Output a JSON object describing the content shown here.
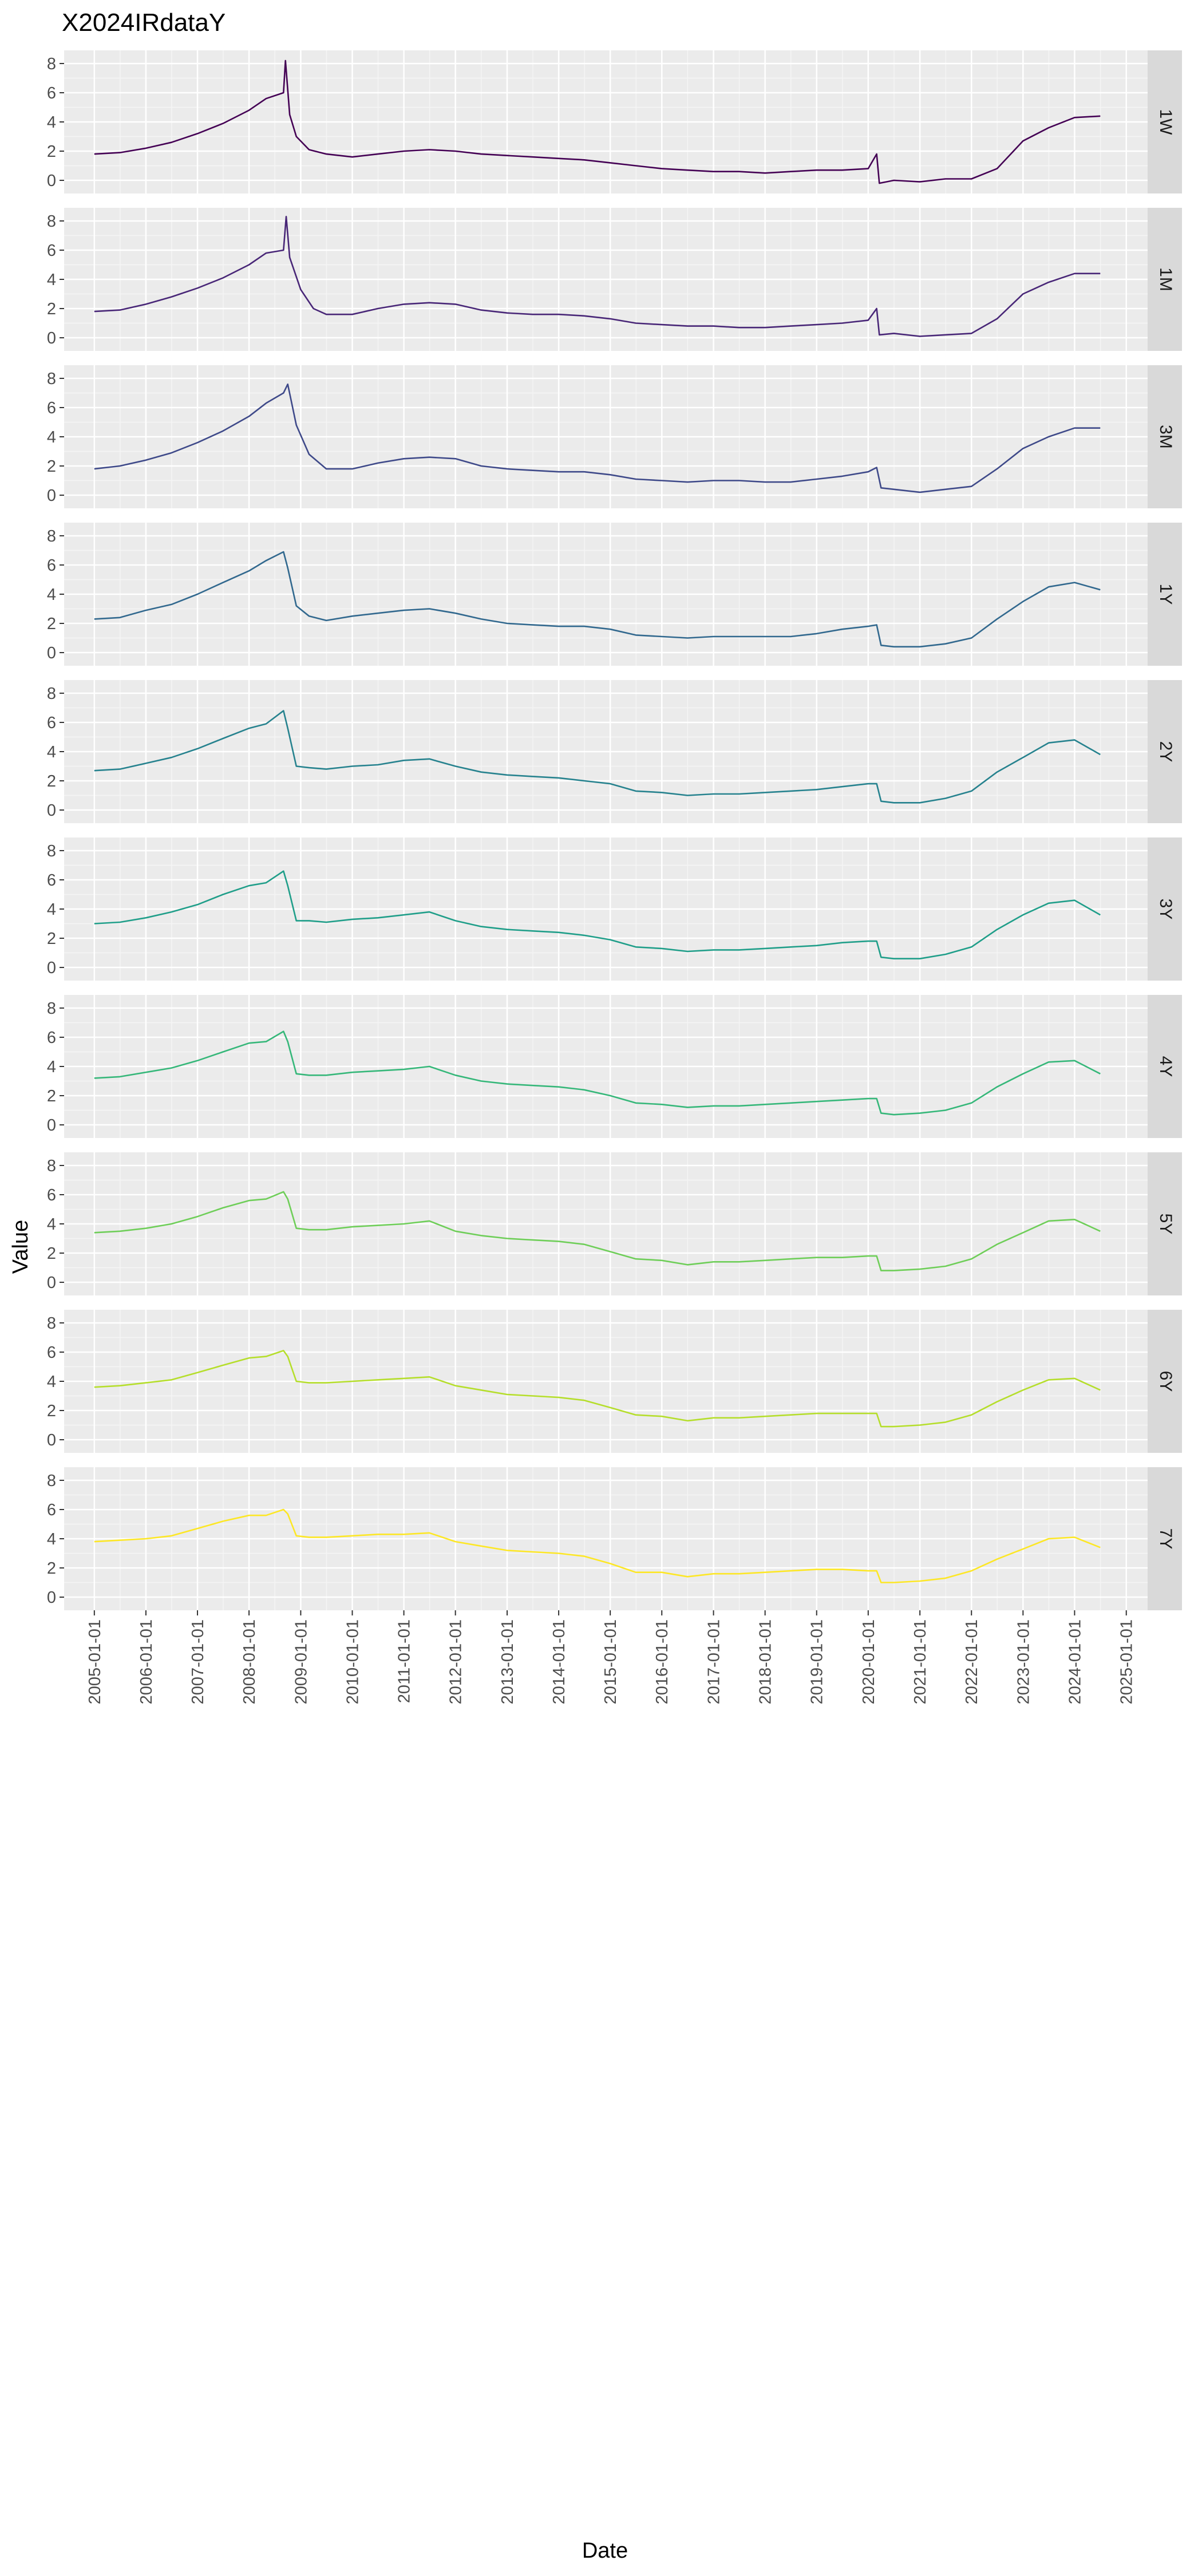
{
  "chart_data": {
    "type": "line",
    "title": "X2024IRdataY",
    "xlabel": "Date",
    "ylabel": "Value",
    "x_tick_labels": [
      "2005-01-01",
      "2006-01-01",
      "2007-01-01",
      "2008-01-01",
      "2009-01-01",
      "2010-01-01",
      "2011-01-01",
      "2012-01-01",
      "2013-01-01",
      "2014-01-01",
      "2015-01-01",
      "2016-01-01",
      "2017-01-01",
      "2018-01-01",
      "2019-01-01",
      "2020-01-01",
      "2021-01-01",
      "2022-01-01",
      "2023-01-01",
      "2024-01-01",
      "2025-01-01"
    ],
    "xlim": [
      "2004-06-01",
      "2025-06-01"
    ],
    "y_tick_labels": [
      "0",
      "2",
      "4",
      "6",
      "8"
    ],
    "ylim": [
      -0.9,
      8.9
    ],
    "grid": true,
    "facet_layout": "one row per series, strip labels on right",
    "colors": {
      "panel_bg": "#ebebeb",
      "grid_major": "#ffffff",
      "strip_bg": "#d9d9d9",
      "tick_label": "#4d4d4d"
    },
    "series": [
      {
        "name": "1W",
        "color": "#440154",
        "x": [
          "2005-01-01",
          "2005-07-01",
          "2006-01-01",
          "2006-07-01",
          "2007-01-01",
          "2007-07-01",
          "2008-01-01",
          "2008-05-01",
          "2008-09-01",
          "2008-09-15",
          "2008-10-15",
          "2008-12-01",
          "2009-03-01",
          "2009-07-01",
          "2010-01-01",
          "2010-07-01",
          "2011-01-01",
          "2011-07-01",
          "2012-01-01",
          "2012-07-01",
          "2013-01-01",
          "2013-07-01",
          "2014-01-01",
          "2014-07-01",
          "2015-01-01",
          "2015-07-01",
          "2016-01-01",
          "2016-07-01",
          "2017-01-01",
          "2017-07-01",
          "2018-01-01",
          "2018-07-01",
          "2019-01-01",
          "2019-07-01",
          "2020-01-01",
          "2020-03-01",
          "2020-03-20",
          "2020-07-01",
          "2021-01-01",
          "2021-07-01",
          "2022-01-01",
          "2022-07-01",
          "2023-01-01",
          "2023-07-01",
          "2024-01-01",
          "2024-07-01"
        ],
        "values": [
          1.8,
          1.9,
          2.2,
          2.6,
          3.2,
          3.9,
          4.8,
          5.6,
          6.0,
          8.2,
          4.5,
          3.0,
          2.1,
          1.8,
          1.6,
          1.8,
          2.0,
          2.1,
          2.0,
          1.8,
          1.7,
          1.6,
          1.5,
          1.4,
          1.2,
          1.0,
          0.8,
          0.7,
          0.6,
          0.6,
          0.5,
          0.6,
          0.7,
          0.7,
          0.8,
          1.8,
          -0.2,
          0.0,
          -0.1,
          0.1,
          0.1,
          0.8,
          2.7,
          3.6,
          4.3,
          4.4
        ]
      },
      {
        "name": "1M",
        "color": "#482677",
        "x": [
          "2005-01-01",
          "2005-07-01",
          "2006-01-01",
          "2006-07-01",
          "2007-01-01",
          "2007-07-01",
          "2008-01-01",
          "2008-05-01",
          "2008-09-01",
          "2008-09-20",
          "2008-10-15",
          "2009-01-01",
          "2009-04-01",
          "2009-07-01",
          "2010-01-01",
          "2010-07-01",
          "2011-01-01",
          "2011-07-01",
          "2012-01-01",
          "2012-07-01",
          "2013-01-01",
          "2013-07-01",
          "2014-01-01",
          "2014-07-01",
          "2015-01-01",
          "2015-07-01",
          "2016-01-01",
          "2016-07-01",
          "2017-01-01",
          "2017-07-01",
          "2018-01-01",
          "2018-07-01",
          "2019-01-01",
          "2019-07-01",
          "2020-01-01",
          "2020-03-01",
          "2020-03-20",
          "2020-07-01",
          "2021-01-01",
          "2021-07-01",
          "2022-01-01",
          "2022-07-01",
          "2023-01-01",
          "2023-07-01",
          "2024-01-01",
          "2024-07-01"
        ],
        "values": [
          1.8,
          1.9,
          2.3,
          2.8,
          3.4,
          4.1,
          5.0,
          5.8,
          6.0,
          8.3,
          5.5,
          3.3,
          2.0,
          1.6,
          1.6,
          2.0,
          2.3,
          2.4,
          2.3,
          1.9,
          1.7,
          1.6,
          1.6,
          1.5,
          1.3,
          1.0,
          0.9,
          0.8,
          0.8,
          0.7,
          0.7,
          0.8,
          0.9,
          1.0,
          1.2,
          2.0,
          0.2,
          0.3,
          0.1,
          0.2,
          0.3,
          1.3,
          3.0,
          3.8,
          4.4,
          4.4
        ]
      },
      {
        "name": "3M",
        "color": "#3e4989",
        "x": [
          "2005-01-01",
          "2005-07-01",
          "2006-01-01",
          "2006-07-01",
          "2007-01-01",
          "2007-07-01",
          "2008-01-01",
          "2008-05-01",
          "2008-09-01",
          "2008-10-01",
          "2008-12-01",
          "2009-03-01",
          "2009-07-01",
          "2010-01-01",
          "2010-07-01",
          "2011-01-01",
          "2011-07-01",
          "2012-01-01",
          "2012-07-01",
          "2013-01-01",
          "2013-07-01",
          "2014-01-01",
          "2014-07-01",
          "2015-01-01",
          "2015-07-01",
          "2016-01-01",
          "2016-07-01",
          "2017-01-01",
          "2017-07-01",
          "2018-01-01",
          "2018-07-01",
          "2019-01-01",
          "2019-07-01",
          "2020-01-01",
          "2020-03-01",
          "2020-04-01",
          "2020-07-01",
          "2021-01-01",
          "2021-07-01",
          "2022-01-01",
          "2022-07-01",
          "2023-01-01",
          "2023-07-01",
          "2024-01-01",
          "2024-07-01"
        ],
        "values": [
          1.8,
          2.0,
          2.4,
          2.9,
          3.6,
          4.4,
          5.4,
          6.3,
          7.0,
          7.6,
          4.8,
          2.8,
          1.8,
          1.8,
          2.2,
          2.5,
          2.6,
          2.5,
          2.0,
          1.8,
          1.7,
          1.6,
          1.6,
          1.4,
          1.1,
          1.0,
          0.9,
          1.0,
          1.0,
          0.9,
          0.9,
          1.1,
          1.3,
          1.6,
          1.9,
          0.5,
          0.4,
          0.2,
          0.4,
          0.6,
          1.8,
          3.2,
          4.0,
          4.6,
          4.6
        ]
      },
      {
        "name": "1Y",
        "color": "#31688e",
        "x": [
          "2005-01-01",
          "2005-07-01",
          "2006-01-01",
          "2006-07-01",
          "2007-01-01",
          "2007-07-01",
          "2008-01-01",
          "2008-05-01",
          "2008-09-01",
          "2008-10-01",
          "2008-12-01",
          "2009-03-01",
          "2009-07-01",
          "2010-01-01",
          "2010-07-01",
          "2011-01-01",
          "2011-07-01",
          "2012-01-01",
          "2012-07-01",
          "2013-01-01",
          "2013-07-01",
          "2014-01-01",
          "2014-07-01",
          "2015-01-01",
          "2015-07-01",
          "2016-01-01",
          "2016-07-01",
          "2017-01-01",
          "2017-07-01",
          "2018-01-01",
          "2018-07-01",
          "2019-01-01",
          "2019-07-01",
          "2020-01-01",
          "2020-03-01",
          "2020-04-01",
          "2020-07-01",
          "2021-01-01",
          "2021-07-01",
          "2022-01-01",
          "2022-07-01",
          "2023-01-01",
          "2023-07-01",
          "2024-01-01",
          "2024-07-01"
        ],
        "values": [
          2.3,
          2.4,
          2.9,
          3.3,
          4.0,
          4.8,
          5.6,
          6.3,
          6.9,
          5.8,
          3.2,
          2.5,
          2.2,
          2.5,
          2.7,
          2.9,
          3.0,
          2.7,
          2.3,
          2.0,
          1.9,
          1.8,
          1.8,
          1.6,
          1.2,
          1.1,
          1.0,
          1.1,
          1.1,
          1.1,
          1.1,
          1.3,
          1.6,
          1.8,
          1.9,
          0.5,
          0.4,
          0.4,
          0.6,
          1.0,
          2.3,
          3.5,
          4.5,
          4.8,
          4.3
        ]
      },
      {
        "name": "2Y",
        "color": "#26828e",
        "x": [
          "2005-01-01",
          "2005-07-01",
          "2006-01-01",
          "2006-07-01",
          "2007-01-01",
          "2007-07-01",
          "2008-01-01",
          "2008-05-01",
          "2008-09-01",
          "2008-10-01",
          "2008-12-01",
          "2009-03-01",
          "2009-07-01",
          "2010-01-01",
          "2010-07-01",
          "2011-01-01",
          "2011-07-01",
          "2012-01-01",
          "2012-07-01",
          "2013-01-01",
          "2013-07-01",
          "2014-01-01",
          "2014-07-01",
          "2015-01-01",
          "2015-07-01",
          "2016-01-01",
          "2016-07-01",
          "2017-01-01",
          "2017-07-01",
          "2018-01-01",
          "2018-07-01",
          "2019-01-01",
          "2019-07-01",
          "2020-01-01",
          "2020-03-01",
          "2020-04-01",
          "2020-07-01",
          "2021-01-01",
          "2021-07-01",
          "2022-01-01",
          "2022-07-01",
          "2023-01-01",
          "2023-07-01",
          "2024-01-01",
          "2024-07-01"
        ],
        "values": [
          2.7,
          2.8,
          3.2,
          3.6,
          4.2,
          4.9,
          5.6,
          5.9,
          6.8,
          5.6,
          3.0,
          2.9,
          2.8,
          3.0,
          3.1,
          3.4,
          3.5,
          3.0,
          2.6,
          2.4,
          2.3,
          2.2,
          2.0,
          1.8,
          1.3,
          1.2,
          1.0,
          1.1,
          1.1,
          1.2,
          1.3,
          1.4,
          1.6,
          1.8,
          1.8,
          0.6,
          0.5,
          0.5,
          0.8,
          1.3,
          2.6,
          3.6,
          4.6,
          4.8,
          3.8
        ]
      },
      {
        "name": "3Y",
        "color": "#1f9e89",
        "x": [
          "2005-01-01",
          "2005-07-01",
          "2006-01-01",
          "2006-07-01",
          "2007-01-01",
          "2007-07-01",
          "2008-01-01",
          "2008-05-01",
          "2008-09-01",
          "2008-10-01",
          "2008-12-01",
          "2009-03-01",
          "2009-07-01",
          "2010-01-01",
          "2010-07-01",
          "2011-01-01",
          "2011-07-01",
          "2012-01-01",
          "2012-07-01",
          "2013-01-01",
          "2013-07-01",
          "2014-01-01",
          "2014-07-01",
          "2015-01-01",
          "2015-07-01",
          "2016-01-01",
          "2016-07-01",
          "2017-01-01",
          "2017-07-01",
          "2018-01-01",
          "2018-07-01",
          "2019-01-01",
          "2019-07-01",
          "2020-01-01",
          "2020-03-01",
          "2020-04-01",
          "2020-07-01",
          "2021-01-01",
          "2021-07-01",
          "2022-01-01",
          "2022-07-01",
          "2023-01-01",
          "2023-07-01",
          "2024-01-01",
          "2024-07-01"
        ],
        "values": [
          3.0,
          3.1,
          3.4,
          3.8,
          4.3,
          5.0,
          5.6,
          5.8,
          6.6,
          5.6,
          3.2,
          3.2,
          3.1,
          3.3,
          3.4,
          3.6,
          3.8,
          3.2,
          2.8,
          2.6,
          2.5,
          2.4,
          2.2,
          1.9,
          1.4,
          1.3,
          1.1,
          1.2,
          1.2,
          1.3,
          1.4,
          1.5,
          1.7,
          1.8,
          1.8,
          0.7,
          0.6,
          0.6,
          0.9,
          1.4,
          2.6,
          3.6,
          4.4,
          4.6,
          3.6
        ]
      },
      {
        "name": "4Y",
        "color": "#35b779",
        "x": [
          "2005-01-01",
          "2005-07-01",
          "2006-01-01",
          "2006-07-01",
          "2007-01-01",
          "2007-07-01",
          "2008-01-01",
          "2008-05-01",
          "2008-09-01",
          "2008-10-01",
          "2008-12-01",
          "2009-03-01",
          "2009-07-01",
          "2010-01-01",
          "2010-07-01",
          "2011-01-01",
          "2011-07-01",
          "2012-01-01",
          "2012-07-01",
          "2013-01-01",
          "2013-07-01",
          "2014-01-01",
          "2014-07-01",
          "2015-01-01",
          "2015-07-01",
          "2016-01-01",
          "2016-07-01",
          "2017-01-01",
          "2017-07-01",
          "2018-01-01",
          "2018-07-01",
          "2019-01-01",
          "2019-07-01",
          "2020-01-01",
          "2020-03-01",
          "2020-04-01",
          "2020-07-01",
          "2021-01-01",
          "2021-07-01",
          "2022-01-01",
          "2022-07-01",
          "2023-01-01",
          "2023-07-01",
          "2024-01-01",
          "2024-07-01"
        ],
        "values": [
          3.2,
          3.3,
          3.6,
          3.9,
          4.4,
          5.0,
          5.6,
          5.7,
          6.4,
          5.7,
          3.5,
          3.4,
          3.4,
          3.6,
          3.7,
          3.8,
          4.0,
          3.4,
          3.0,
          2.8,
          2.7,
          2.6,
          2.4,
          2.0,
          1.5,
          1.4,
          1.2,
          1.3,
          1.3,
          1.4,
          1.5,
          1.6,
          1.7,
          1.8,
          1.8,
          0.8,
          0.7,
          0.8,
          1.0,
          1.5,
          2.6,
          3.5,
          4.3,
          4.4,
          3.5
        ]
      },
      {
        "name": "5Y",
        "color": "#6ece58",
        "x": [
          "2005-01-01",
          "2005-07-01",
          "2006-01-01",
          "2006-07-01",
          "2007-01-01",
          "2007-07-01",
          "2008-01-01",
          "2008-05-01",
          "2008-09-01",
          "2008-10-01",
          "2008-12-01",
          "2009-03-01",
          "2009-07-01",
          "2010-01-01",
          "2010-07-01",
          "2011-01-01",
          "2011-07-01",
          "2012-01-01",
          "2012-07-01",
          "2013-01-01",
          "2013-07-01",
          "2014-01-01",
          "2014-07-01",
          "2015-01-01",
          "2015-07-01",
          "2016-01-01",
          "2016-07-01",
          "2017-01-01",
          "2017-07-01",
          "2018-01-01",
          "2018-07-01",
          "2019-01-01",
          "2019-07-01",
          "2020-01-01",
          "2020-03-01",
          "2020-04-01",
          "2020-07-01",
          "2021-01-01",
          "2021-07-01",
          "2022-01-01",
          "2022-07-01",
          "2023-01-01",
          "2023-07-01",
          "2024-01-01",
          "2024-07-01"
        ],
        "values": [
          3.4,
          3.5,
          3.7,
          4.0,
          4.5,
          5.1,
          5.6,
          5.7,
          6.2,
          5.7,
          3.7,
          3.6,
          3.6,
          3.8,
          3.9,
          4.0,
          4.2,
          3.5,
          3.2,
          3.0,
          2.9,
          2.8,
          2.6,
          2.1,
          1.6,
          1.5,
          1.2,
          1.4,
          1.4,
          1.5,
          1.6,
          1.7,
          1.7,
          1.8,
          1.8,
          0.8,
          0.8,
          0.9,
          1.1,
          1.6,
          2.6,
          3.4,
          4.2,
          4.3,
          3.5
        ]
      },
      {
        "name": "6Y",
        "color": "#b5de2b",
        "x": [
          "2005-01-01",
          "2005-07-01",
          "2006-01-01",
          "2006-07-01",
          "2007-01-01",
          "2007-07-01",
          "2008-01-01",
          "2008-05-01",
          "2008-09-01",
          "2008-10-01",
          "2008-12-01",
          "2009-03-01",
          "2009-07-01",
          "2010-01-01",
          "2010-07-01",
          "2011-01-01",
          "2011-07-01",
          "2012-01-01",
          "2012-07-01",
          "2013-01-01",
          "2013-07-01",
          "2014-01-01",
          "2014-07-01",
          "2015-01-01",
          "2015-07-01",
          "2016-01-01",
          "2016-07-01",
          "2017-01-01",
          "2017-07-01",
          "2018-01-01",
          "2018-07-01",
          "2019-01-01",
          "2019-07-01",
          "2020-01-01",
          "2020-03-01",
          "2020-04-01",
          "2020-07-01",
          "2021-01-01",
          "2021-07-01",
          "2022-01-01",
          "2022-07-01",
          "2023-01-01",
          "2023-07-01",
          "2024-01-01",
          "2024-07-01"
        ],
        "values": [
          3.6,
          3.7,
          3.9,
          4.1,
          4.6,
          5.1,
          5.6,
          5.7,
          6.1,
          5.7,
          4.0,
          3.9,
          3.9,
          4.0,
          4.1,
          4.2,
          4.3,
          3.7,
          3.4,
          3.1,
          3.0,
          2.9,
          2.7,
          2.2,
          1.7,
          1.6,
          1.3,
          1.5,
          1.5,
          1.6,
          1.7,
          1.8,
          1.8,
          1.8,
          1.8,
          0.9,
          0.9,
          1.0,
          1.2,
          1.7,
          2.6,
          3.4,
          4.1,
          4.2,
          3.4
        ]
      },
      {
        "name": "7Y",
        "color": "#fde725",
        "x": [
          "2005-01-01",
          "2005-07-01",
          "2006-01-01",
          "2006-07-01",
          "2007-01-01",
          "2007-07-01",
          "2008-01-01",
          "2008-05-01",
          "2008-09-01",
          "2008-10-01",
          "2008-12-01",
          "2009-03-01",
          "2009-07-01",
          "2010-01-01",
          "2010-07-01",
          "2011-01-01",
          "2011-07-01",
          "2012-01-01",
          "2012-07-01",
          "2013-01-01",
          "2013-07-01",
          "2014-01-01",
          "2014-07-01",
          "2015-01-01",
          "2015-07-01",
          "2016-01-01",
          "2016-07-01",
          "2017-01-01",
          "2017-07-01",
          "2018-01-01",
          "2018-07-01",
          "2019-01-01",
          "2019-07-01",
          "2020-01-01",
          "2020-03-01",
          "2020-04-01",
          "2020-07-01",
          "2021-01-01",
          "2021-07-01",
          "2022-01-01",
          "2022-07-01",
          "2023-01-01",
          "2023-07-01",
          "2024-01-01",
          "2024-07-01"
        ],
        "values": [
          3.8,
          3.9,
          4.0,
          4.2,
          4.7,
          5.2,
          5.6,
          5.6,
          6.0,
          5.7,
          4.2,
          4.1,
          4.1,
          4.2,
          4.3,
          4.3,
          4.4,
          3.8,
          3.5,
          3.2,
          3.1,
          3.0,
          2.8,
          2.3,
          1.7,
          1.7,
          1.4,
          1.6,
          1.6,
          1.7,
          1.8,
          1.9,
          1.9,
          1.8,
          1.8,
          1.0,
          1.0,
          1.1,
          1.3,
          1.8,
          2.6,
          3.3,
          4.0,
          4.1,
          3.4
        ]
      }
    ]
  }
}
